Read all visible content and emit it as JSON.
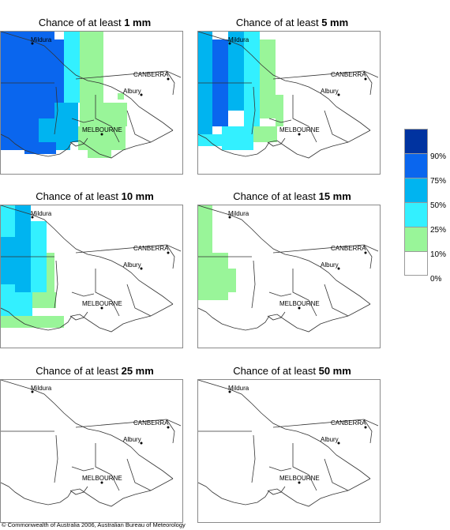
{
  "panels": [
    {
      "title_prefix": "Chance of at least ",
      "amount": "1 mm"
    },
    {
      "title_prefix": "Chance of at least ",
      "amount": "5 mm"
    },
    {
      "title_prefix": "Chance of at least ",
      "amount": "10 mm"
    },
    {
      "title_prefix": "Chance of at least ",
      "amount": "15 mm"
    },
    {
      "title_prefix": "Chance of at least ",
      "amount": "25 mm"
    },
    {
      "title_prefix": "Chance of at least ",
      "amount": "50 mm"
    }
  ],
  "places": {
    "mildura": "Mildura",
    "canberra": "CANBERRA",
    "albury": "Albury",
    "melbourne": "MELBOURNE"
  },
  "legend": {
    "labels": [
      "90%",
      "75%",
      "50%",
      "25%",
      "10%",
      "0%"
    ],
    "colors": [
      "#0033a0",
      "#0a66ee",
      "#00b4f0",
      "#33f0ff",
      "#99f599",
      "#ffffff"
    ]
  },
  "copyright": "© Commonwealth of Australia 2006, Australian Bureau of Meteorology"
}
